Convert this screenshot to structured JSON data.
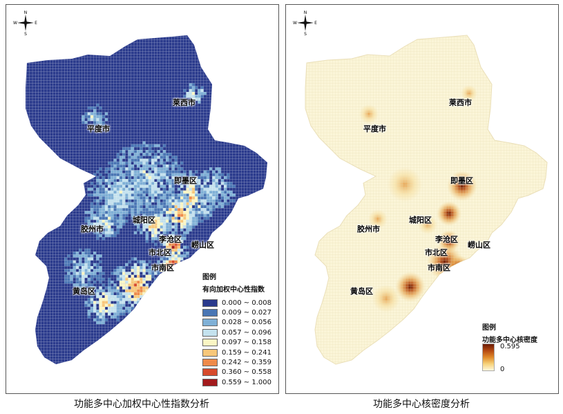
{
  "compass": {
    "n": "N",
    "s": "S",
    "e": "E",
    "w": "W"
  },
  "left": {
    "caption": "功能多中心加权中心性指数分析",
    "legend_title": "图例",
    "legend_subtitle": "有向加权中心性指数",
    "classes": [
      {
        "label": "0.000 ~ 0.008",
        "color": "#2a3a8c"
      },
      {
        "label": "0.009 ~ 0.027",
        "color": "#4a76b4"
      },
      {
        "label": "0.028 ~ 0.056",
        "color": "#7fb0d6"
      },
      {
        "label": "0.057 ~ 0.096",
        "color": "#c4e2ee"
      },
      {
        "label": "0.097 ~ 0.158",
        "color": "#fbf6c4"
      },
      {
        "label": "0.159 ~ 0.241",
        "color": "#f7c77a"
      },
      {
        "label": "0.242 ~ 0.359",
        "color": "#ee8a4a"
      },
      {
        "label": "0.360 ~ 0.558",
        "color": "#d64a2c"
      },
      {
        "label": "0.559 ~ 1.000",
        "color": "#a21a1c"
      }
    ]
  },
  "right": {
    "caption": "功能多中心核密度分析",
    "legend_title": "图例",
    "legend_subtitle": "功能多中心核密度",
    "max_label": "0.595",
    "min_label": "0"
  },
  "cities": [
    {
      "key": "laixi",
      "label": "莱西市"
    },
    {
      "key": "pingdu",
      "label": "平度市"
    },
    {
      "key": "jimo",
      "label": "即墨区"
    },
    {
      "key": "jiaozhou",
      "label": "胶州市"
    },
    {
      "key": "chengyang",
      "label": "城阳区"
    },
    {
      "key": "licang",
      "label": "李沧区"
    },
    {
      "key": "laoshan",
      "label": "崂山区"
    },
    {
      "key": "shibei",
      "label": "市北区"
    },
    {
      "key": "shinan",
      "label": "市南区"
    },
    {
      "key": "huangdao",
      "label": "黄岛区"
    }
  ],
  "colors": {
    "base": "#2a3a8c",
    "density_base": "#fbf5d8",
    "grid": "#ffffff"
  }
}
